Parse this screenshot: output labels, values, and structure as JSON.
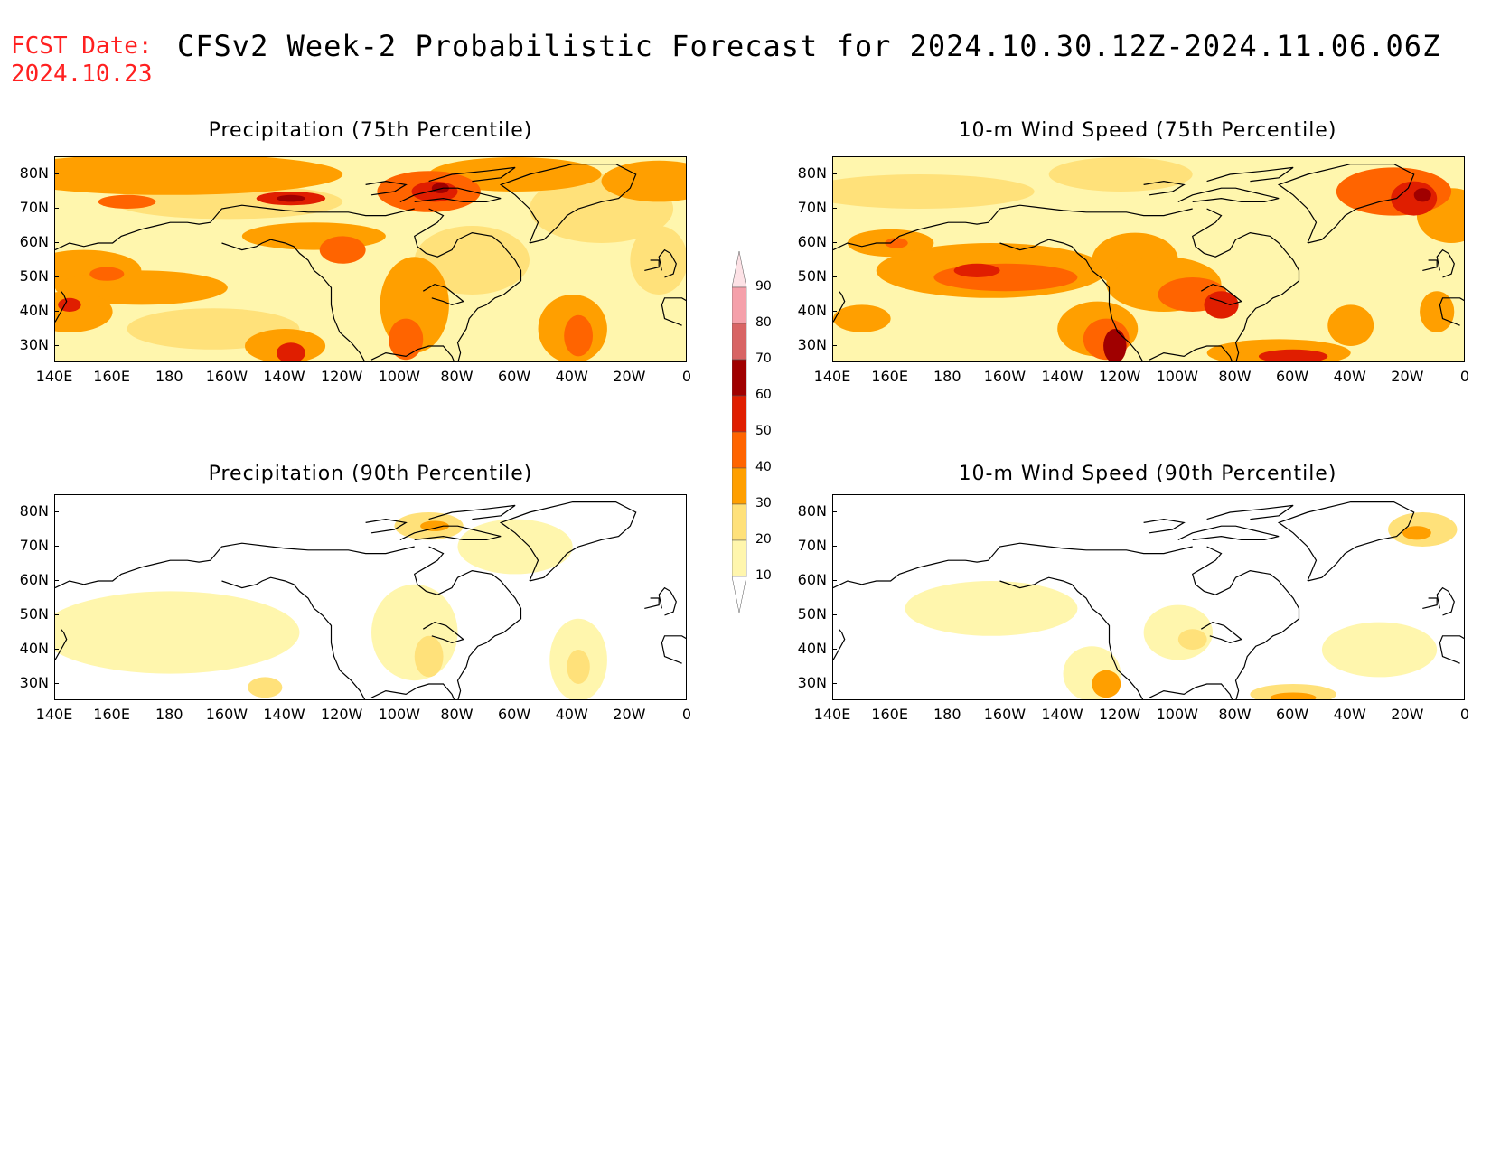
{
  "header": {
    "fcst_label": "FCST Date:",
    "fcst_date": "2024.10.23",
    "title": "CFSv2 Week-2 Probabilistic Forecast for 2024.10.30.12Z-2024.11.06.06Z"
  },
  "panels": [
    {
      "title": "Precipitation (75th Percentile)",
      "variable": "precipitation",
      "percentile": "75th"
    },
    {
      "title": "10-m Wind Speed (75th Percentile)",
      "variable": "wind",
      "percentile": "75th"
    },
    {
      "title": "Precipitation (90th Percentile)",
      "variable": "precipitation",
      "percentile": "90th"
    },
    {
      "title": "10-m Wind Speed (90th Percentile)",
      "variable": "wind",
      "percentile": "90th"
    }
  ],
  "axes": {
    "lat_labels": [
      "80N",
      "70N",
      "60N",
      "50N",
      "40N",
      "30N"
    ],
    "lon_labels": [
      "140E",
      "160E",
      "180",
      "160W",
      "140W",
      "120W",
      "100W",
      "80W",
      "60W",
      "40W",
      "20W",
      "0"
    ]
  },
  "colorbar": {
    "labels": [
      "90",
      "80",
      "70",
      "60",
      "50",
      "40",
      "30",
      "20",
      "10"
    ],
    "colors": [
      "#ffffff",
      "#fff6ad",
      "#ffe17a",
      "#ff9f00",
      "#ff6400",
      "#e01e00",
      "#a00000",
      "#d86464",
      "#f5a0aa",
      "#fde2e6"
    ]
  }
}
